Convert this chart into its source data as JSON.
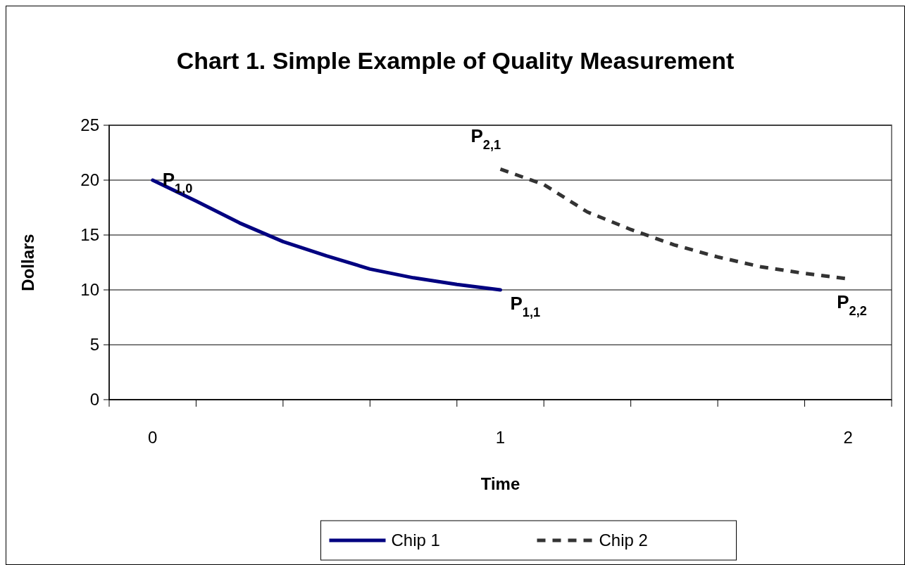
{
  "chart_data": {
    "type": "line",
    "title": "Chart 1.  Simple Example of Quality Measurement",
    "xlabel": "Time",
    "ylabel": "Dollars",
    "xlim": [
      -0.125,
      2.125
    ],
    "xticks": [
      {
        "value": -0.125,
        "label": null
      },
      0,
      {
        "value": 0.125,
        "label": null
      },
      {
        "value": 0.375,
        "label": null
      },
      {
        "value": 0.625,
        "label": null
      },
      {
        "value": 0.875,
        "label": null
      },
      1,
      {
        "value": 1.125,
        "label": null
      },
      {
        "value": 1.375,
        "label": null
      },
      {
        "value": 1.625,
        "label": null
      },
      {
        "value": 1.875,
        "label": null
      },
      2,
      {
        "value": 2.125,
        "label": null
      }
    ],
    "ylim": [
      0,
      25
    ],
    "yticks": [
      0,
      5,
      10,
      15,
      20,
      25
    ],
    "grid": "y",
    "legend": "bottom",
    "series": [
      {
        "name": "Chip 1",
        "color": "#000080",
        "line_style": "solid",
        "x": [
          0,
          0.125,
          0.25,
          0.375,
          0.5,
          0.625,
          0.75,
          0.875,
          1
        ],
        "values": [
          20,
          18.1,
          16.1,
          14.4,
          13.1,
          11.9,
          11.1,
          10.5,
          10
        ]
      },
      {
        "name": "Chip 2",
        "color": "#333333",
        "line_style": "dashed",
        "x": [
          1,
          1.125,
          1.25,
          1.375,
          1.5,
          1.625,
          1.75,
          1.875,
          2
        ],
        "values": [
          21,
          19.6,
          17.1,
          15.5,
          14.1,
          13,
          12.1,
          11.5,
          11
        ]
      }
    ],
    "annotations": [
      {
        "text": "P$_{1,0}$",
        "x": 0,
        "y": 20
      },
      {
        "text": "P$_{1,1}$",
        "x": 1,
        "y": 10
      },
      {
        "text": "P$_{2,1}$",
        "x": 1,
        "y": 21
      },
      {
        "text": "P$_{2,2}$",
        "x": 2,
        "y": 11
      }
    ]
  }
}
